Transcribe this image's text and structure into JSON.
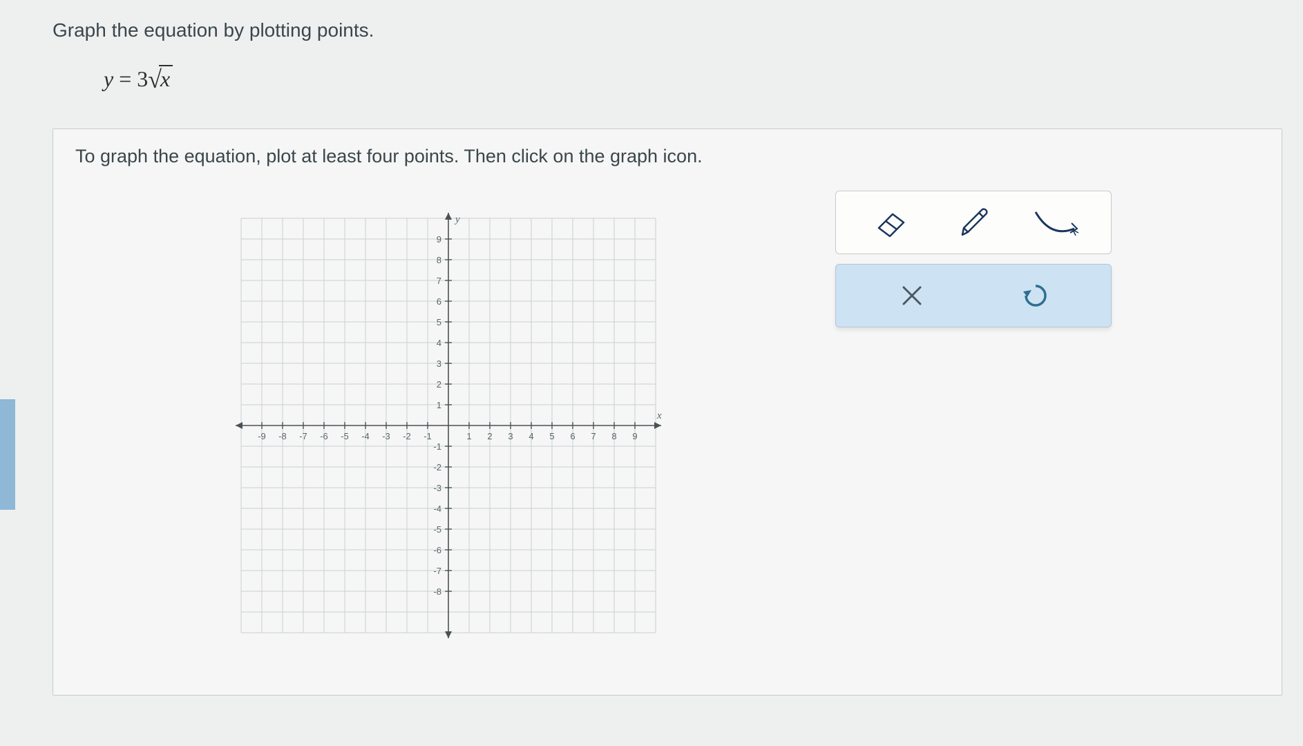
{
  "prompt": "Graph the equation by plotting points.",
  "equation": {
    "lhs": "y",
    "rhs_coeff": "3",
    "radicand": "x"
  },
  "instruction": "To graph the equation, plot at least four points. Then click on the graph icon.",
  "graph": {
    "type": "scatter",
    "xlim": [
      -10,
      10
    ],
    "ylim": [
      -10,
      10
    ],
    "xtick_step": 1,
    "ytick_step": 1,
    "x_labels": [
      -9,
      -8,
      -7,
      -6,
      -5,
      -4,
      -3,
      -2,
      -1,
      1,
      2,
      3,
      4,
      5,
      6,
      7,
      8,
      9
    ],
    "y_labels": [
      9,
      8,
      7,
      6,
      5,
      4,
      3,
      2,
      1,
      -1,
      -2,
      -3,
      -4,
      -5,
      -6,
      -7,
      -8
    ],
    "x_axis_label": "x",
    "y_axis_label": "y",
    "grid_color": "#c9d0d4",
    "axis_color": "#4a5156",
    "tick_label_color": "#5b6368",
    "label_fontsize": 13,
    "background_color": "#f5f6f5",
    "points": []
  },
  "tools": {
    "eraser": "eraser-icon",
    "pencil": "pencil-icon",
    "curve": "curve-icon",
    "clear": "x-icon",
    "undo": "undo-icon"
  },
  "colors": {
    "panel_border": "#c7cbce",
    "text": "#3b464c",
    "tool_stroke": "#1b365d",
    "selected_row_bg": "#cde2f2",
    "undo_color": "#2e6f8f"
  }
}
